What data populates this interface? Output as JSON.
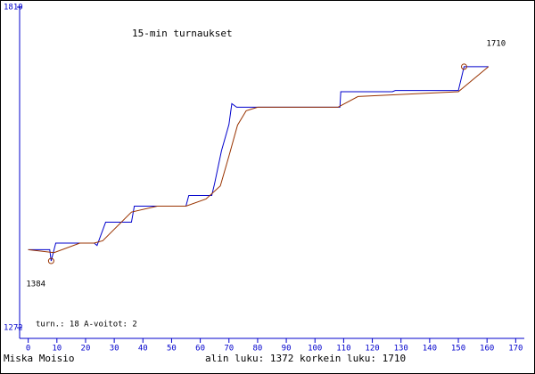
{
  "chart_data": {
    "type": "line",
    "title": "15-min turnaukset",
    "xlim": [
      -3,
      173
    ],
    "xticks": [
      0,
      10,
      20,
      30,
      40,
      50,
      60,
      70,
      80,
      90,
      100,
      110,
      120,
      130,
      140,
      150,
      160,
      170
    ],
    "ylim": [
      1272,
      1810
    ],
    "yticks": [
      1272,
      1810
    ],
    "axis_color": "#0000cc",
    "series": [
      {
        "color": "#0000cc",
        "x": [
          0,
          7.5,
          8,
          9.6,
          23,
          24,
          27,
          36,
          37,
          55,
          56,
          64,
          65,
          67.4,
          70,
          71,
          72.7,
          108.7,
          109,
          117.7,
          127,
          128,
          150,
          152,
          160.5
        ],
        "values": [
          1403,
          1403,
          1384,
          1414,
          1414,
          1410,
          1449,
          1449,
          1476,
          1476,
          1494,
          1494,
          1514,
          1569,
          1613,
          1648,
          1642,
          1642,
          1668,
          1668,
          1668,
          1670,
          1670,
          1710,
          1710
        ]
      },
      {
        "color": "#993300",
        "x": [
          0,
          9,
          18,
          23,
          26,
          36,
          45,
          55,
          62,
          67,
          70,
          73,
          76,
          80,
          108,
          115,
          150,
          160.5
        ],
        "values": [
          1403,
          1398,
          1414,
          1414,
          1418,
          1466,
          1476,
          1476,
          1488,
          1510,
          1560,
          1612,
          1636,
          1642,
          1642,
          1660,
          1668,
          1710
        ]
      }
    ],
    "highlights": [
      {
        "x": 152,
        "y": 1710
      },
      {
        "x": 8,
        "y": 1384
      }
    ],
    "info": "turn.: 18  A-voitot: 2",
    "player": "Miska Moisio",
    "summary": "alin luku: 1372  korkein luku: 1710"
  }
}
